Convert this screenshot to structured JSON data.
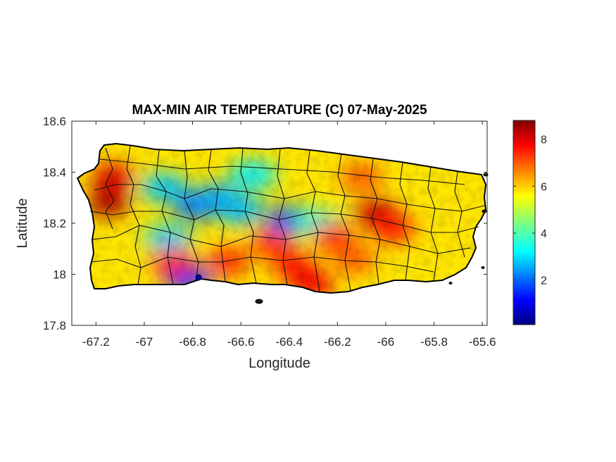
{
  "chart_data": {
    "type": "heatmap",
    "title": "MAX-MIN AIR TEMPERATURE (C) 07-May-2025",
    "xlabel": "Longitude",
    "ylabel": "Latitude",
    "xlim": [
      -67.3,
      -65.58
    ],
    "ylim": [
      17.8,
      18.6
    ],
    "xticks": [
      "-67.2",
      "-67",
      "-66.8",
      "-66.6",
      "-66.4",
      "-66.2",
      "-66",
      "-65.8",
      "-65.6"
    ],
    "xtick_values": [
      -67.2,
      -67.0,
      -66.8,
      -66.6,
      -66.4,
      -66.2,
      -66.0,
      -65.8,
      -65.6
    ],
    "yticks": [
      "18.6",
      "18.4",
      "18.2",
      "18",
      "17.8"
    ],
    "ytick_values": [
      18.6,
      18.4,
      18.2,
      18.0,
      17.8
    ],
    "colorbar": {
      "colormap": "jet",
      "range": [
        0.1,
        8.8
      ],
      "ticks": [
        "8",
        "6",
        "4",
        "2"
      ],
      "tick_values": [
        8,
        6,
        4,
        2
      ]
    },
    "grid": false,
    "hotspots": [
      {
        "lon": -67.15,
        "lat": 18.28,
        "value": 8.4
      },
      {
        "lon": -67.13,
        "lat": 18.38,
        "value": 8.0
      },
      {
        "lon": -66.88,
        "lat": 18.05,
        "value": 7.6
      },
      {
        "lon": -66.65,
        "lat": 18.05,
        "value": 7.4
      },
      {
        "lon": -66.47,
        "lat": 18.12,
        "value": 7.3
      },
      {
        "lon": -66.38,
        "lat": 18.03,
        "value": 7.6
      },
      {
        "lon": -66.3,
        "lat": 17.96,
        "value": 7.8
      },
      {
        "lon": -66.04,
        "lat": 18.24,
        "value": 8.2
      },
      {
        "lon": -65.97,
        "lat": 18.18,
        "value": 7.6
      },
      {
        "lon": -66.13,
        "lat": 18.06,
        "value": 7.0
      },
      {
        "lon": -66.1,
        "lat": 18.38,
        "value": 7.0
      },
      {
        "lon": -66.22,
        "lat": 18.15,
        "value": 7.4
      }
    ],
    "coldspots": [
      {
        "lon": -66.78,
        "lat": 18.27,
        "value": 2.0
      },
      {
        "lon": -66.4,
        "lat": 18.21,
        "value": 1.8
      },
      {
        "lon": -66.7,
        "lat": 18.3,
        "value": 2.6
      },
      {
        "lon": -66.92,
        "lat": 18.34,
        "value": 2.9
      },
      {
        "lon": -66.6,
        "lat": 18.25,
        "value": 2.8
      },
      {
        "lon": -66.55,
        "lat": 18.39,
        "value": 3.2
      },
      {
        "lon": -66.9,
        "lat": 18.14,
        "value": 3.0
      },
      {
        "lon": -66.82,
        "lat": 17.98,
        "value": 1.6
      },
      {
        "lon": -66.28,
        "lat": 18.2,
        "value": 3.6
      }
    ]
  }
}
